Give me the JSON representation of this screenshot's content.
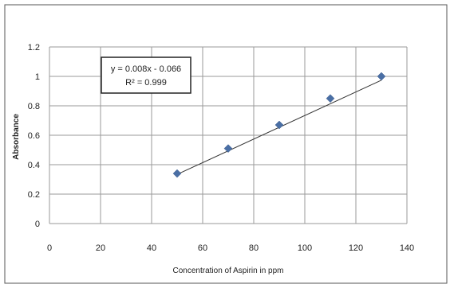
{
  "chart_data": {
    "type": "scatter",
    "title": "",
    "xlabel": "Concentration of Aspirin in ppm",
    "ylabel": "Absorbance",
    "xlim": [
      0,
      140
    ],
    "ylim": [
      0,
      1.2
    ],
    "x_ticks": [
      0,
      20,
      40,
      60,
      80,
      100,
      120,
      140
    ],
    "y_ticks": [
      0,
      0.2,
      0.4,
      0.6,
      0.8,
      1,
      1.2
    ],
    "x_tick_labels": [
      "0",
      "20",
      "40",
      "60",
      "80",
      "100",
      "120",
      "140"
    ],
    "y_tick_labels": [
      "0",
      "0.2",
      "0.4",
      "0.6",
      "0.8",
      "1",
      "1.2"
    ],
    "grid": true,
    "legend": "none",
    "series": [
      {
        "x": [
          50,
          70,
          90,
          110,
          130
        ],
        "y": [
          0.34,
          0.51,
          0.67,
          0.85,
          1.0
        ],
        "marker": "diamond",
        "color": "#4a6fa5"
      }
    ],
    "trendline": {
      "type": "linear",
      "slope": 0.008,
      "intercept": -0.066,
      "x_range": [
        50,
        130
      ],
      "color": "#333333"
    },
    "annotations": {
      "equation": "y = 0.008x - 0.066",
      "r_squared": "R² = 0.999"
    }
  }
}
